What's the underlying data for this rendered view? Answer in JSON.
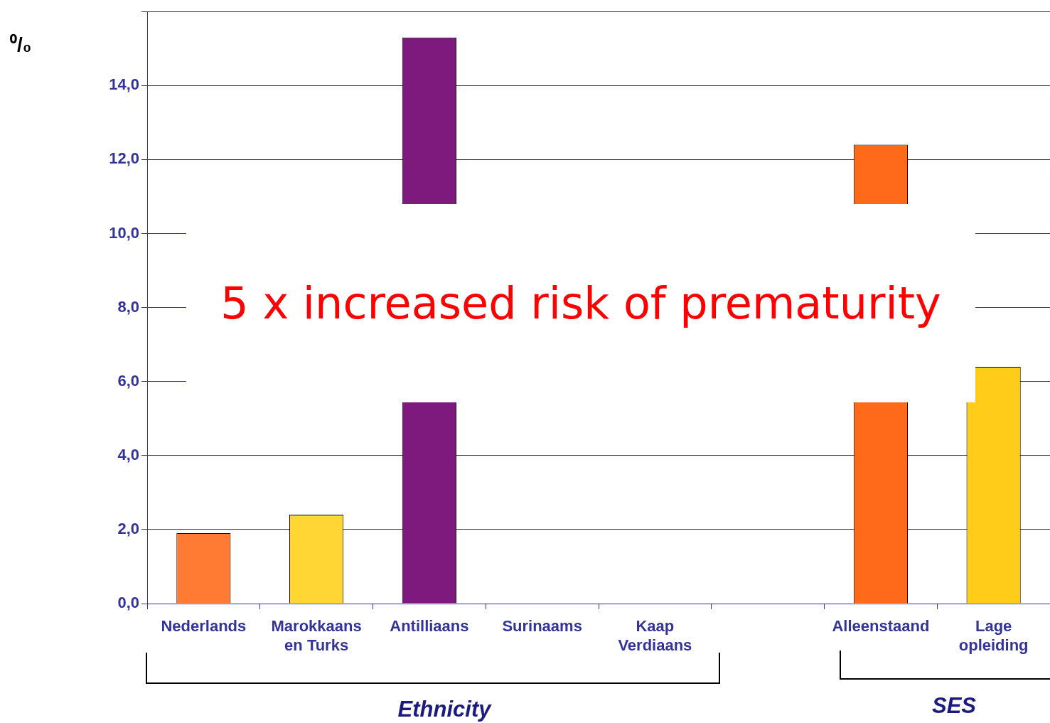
{
  "chart_data": {
    "type": "bar",
    "categories": [
      "Nederlands",
      "Marokkaans en Turks",
      "Antilliaans",
      "Surinaams",
      "Kaap Verdiaans",
      null,
      "Alleenstaand",
      "Lage opleiding"
    ],
    "values": [
      1.9,
      2.4,
      15.3,
      null,
      null,
      null,
      12.4,
      6.4
    ],
    "colors": [
      "#ff7a33",
      "#ffd633",
      "#7e1a7e",
      "#e0ffe0",
      "#c4e0ff",
      "#ffffff",
      "#ff6a1a",
      "#ffcc1a"
    ],
    "ylabel": "⁰/₀",
    "ylim": [
      0,
      16
    ],
    "yticks": [
      {
        "value": 0,
        "label": "0,0"
      },
      {
        "value": 2,
        "label": "2,0"
      },
      {
        "value": 4,
        "label": "4,0"
      },
      {
        "value": 6,
        "label": "6,0"
      },
      {
        "value": 8,
        "label": "8,0"
      },
      {
        "value": 10,
        "label": "10,0"
      },
      {
        "value": 12,
        "label": "12,0"
      },
      {
        "value": 14,
        "label": "14,0"
      },
      {
        "value": 16,
        "label": null
      }
    ],
    "grid": "y",
    "legend": false,
    "annotations": [
      "5 x increased risk of prematurity",
      "Ethnicity",
      "SES"
    ]
  }
}
